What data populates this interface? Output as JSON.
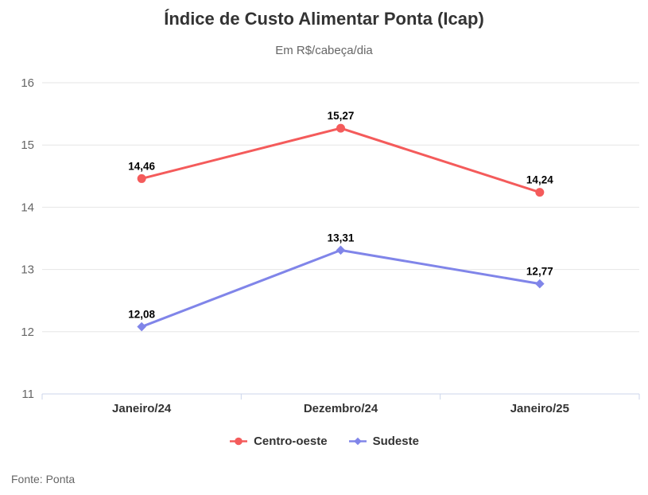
{
  "title": "Índice de Custo Alimentar Ponta (Icap)",
  "subtitle": "Em R$/cabeça/dia",
  "source": "Fonte: Ponta",
  "chart_data": {
    "type": "line",
    "title": "Índice de Custo Alimentar Ponta (Icap)",
    "subtitle": "Em R$/cabeça/dia",
    "categories": [
      "Janeiro/24",
      "Dezembro/24",
      "Janeiro/25"
    ],
    "series": [
      {
        "name": "Centro-oeste",
        "color": "#f45b5b",
        "marker": "circle",
        "values": [
          14.46,
          15.27,
          14.24
        ],
        "labels": [
          "14,46",
          "15,27",
          "14,24"
        ]
      },
      {
        "name": "Sudeste",
        "color": "#8085e9",
        "marker": "diamond",
        "values": [
          12.08,
          13.31,
          12.77
        ],
        "labels": [
          "12,08",
          "13,31",
          "12,77"
        ]
      }
    ],
    "xlabel": "",
    "ylabel": "",
    "ylim": [
      11,
      16
    ],
    "yticks": [
      11,
      12,
      13,
      14,
      15,
      16
    ],
    "grid": true,
    "legend_position": "bottom",
    "decimal_separator": ",",
    "colors": {
      "grid": "#e6e6e6",
      "axis": "#ccd6eb",
      "tick_label": "#666666",
      "category_label": "#333333",
      "data_label": "#000000",
      "title": "#333333",
      "subtitle": "#666666",
      "source": "#666666"
    }
  }
}
